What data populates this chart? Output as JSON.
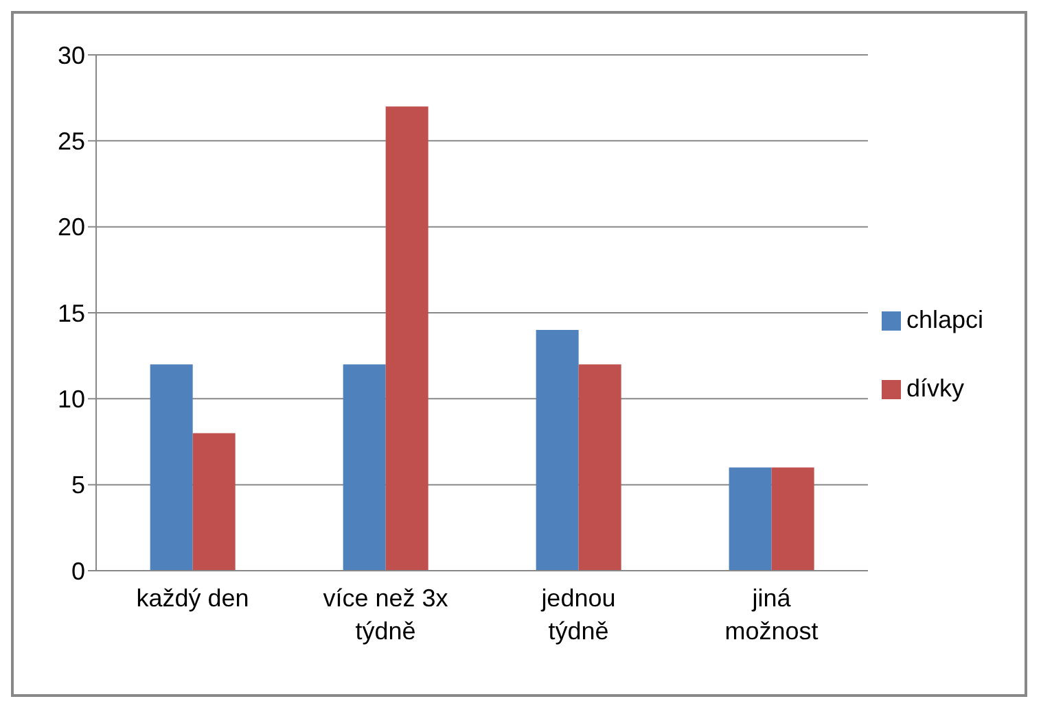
{
  "chart_data": {
    "type": "bar",
    "categories": [
      "každý den",
      "více než 3x týdně",
      "jednou týdně",
      "jiná možnost"
    ],
    "series": [
      {
        "name": "chlapci",
        "color": "#4f81bd",
        "values": [
          12,
          12,
          14,
          6
        ]
      },
      {
        "name": "dívky",
        "color": "#c0504d",
        "values": [
          8,
          27,
          12,
          6
        ]
      }
    ],
    "ylim": [
      0,
      30
    ],
    "yticks": [
      0,
      5,
      10,
      15,
      20,
      25,
      30
    ],
    "grid": "y",
    "legend": "right"
  }
}
